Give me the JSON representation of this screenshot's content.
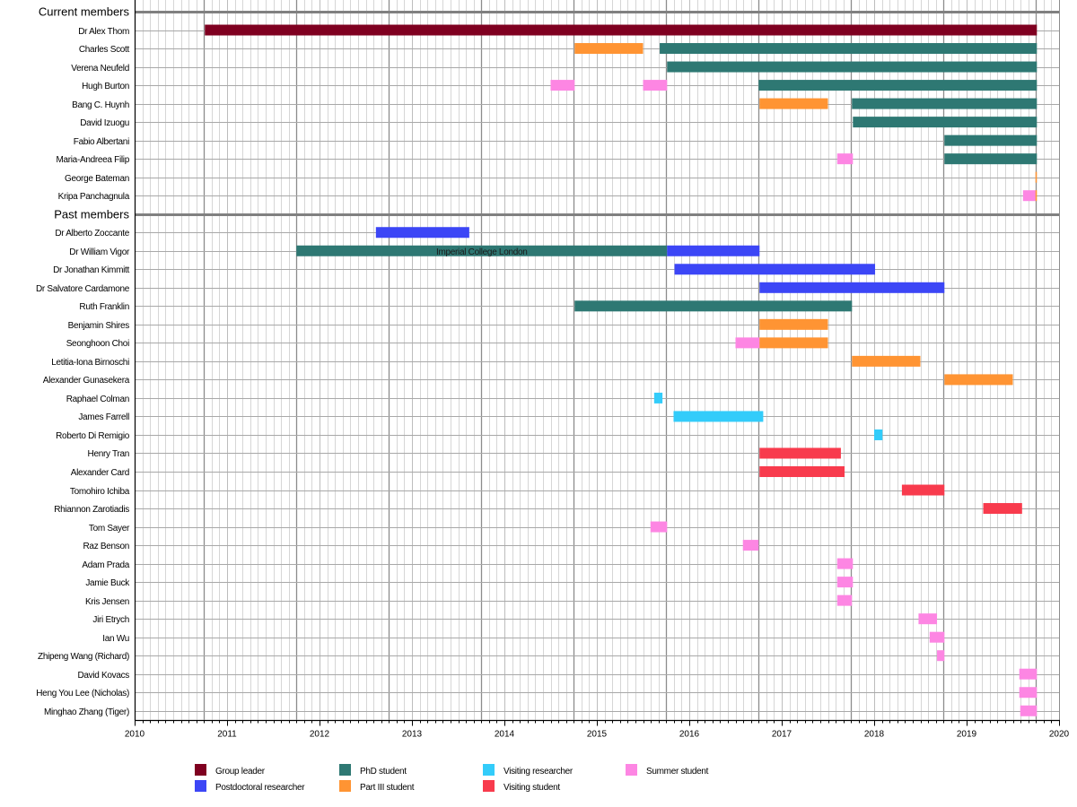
{
  "chart_data": {
    "type": "gantt",
    "title": "",
    "xlabel": "",
    "ylabel": "",
    "xlim": [
      2010,
      2020
    ],
    "x_ticks": [
      "2010",
      "2011",
      "2012",
      "2013",
      "2014",
      "2015",
      "2016",
      "2017",
      "2018",
      "2019",
      "2020"
    ],
    "grid": true,
    "legend_position": "bottom",
    "categories": {
      "group_leader": {
        "label": "Group leader",
        "color": "#7f0020"
      },
      "postdoc": {
        "label": "Postdoctoral researcher",
        "color": "#3c46f6"
      },
      "phd": {
        "label": "PhD student",
        "color": "#2e7873"
      },
      "part3": {
        "label": "Part III student",
        "color": "#ff9433"
      },
      "visiting_researcher": {
        "label": "Visiting researcher",
        "color": "#33ccfa"
      },
      "visiting_student": {
        "label": "Visiting student",
        "color": "#f83b4d"
      },
      "summer": {
        "label": "Summer student",
        "color": "#fd86e3"
      }
    },
    "legend_order": [
      "group_leader",
      "postdoc",
      "phd",
      "part3",
      "visiting_researcher",
      "visiting_student",
      "summer"
    ],
    "sections": [
      {
        "title": "Current members",
        "members": [
          {
            "name": "Dr Alex Thom",
            "spans": [
              {
                "start": 2010.76,
                "end": 2019.76,
                "role": "group_leader"
              }
            ]
          },
          {
            "name": "Charles Scott",
            "spans": [
              {
                "start": 2014.76,
                "end": 2015.5,
                "role": "part3"
              },
              {
                "start": 2015.68,
                "end": 2019.76,
                "role": "phd"
              }
            ]
          },
          {
            "name": "Verena Neufeld",
            "spans": [
              {
                "start": 2015.76,
                "end": 2019.76,
                "role": "phd"
              }
            ]
          },
          {
            "name": "Hugh Burton",
            "spans": [
              {
                "start": 2014.5,
                "end": 2014.76,
                "role": "summer"
              },
              {
                "start": 2015.5,
                "end": 2015.76,
                "role": "summer"
              },
              {
                "start": 2016.75,
                "end": 2019.76,
                "role": "phd"
              }
            ]
          },
          {
            "name": "Bang C. Huynh",
            "spans": [
              {
                "start": 2016.76,
                "end": 2017.5,
                "role": "part3"
              },
              {
                "start": 2017.76,
                "end": 2019.76,
                "role": "phd"
              }
            ]
          },
          {
            "name": "David Izuogu",
            "spans": [
              {
                "start": 2017.77,
                "end": 2019.76,
                "role": "phd"
              }
            ]
          },
          {
            "name": "Fabio Albertani",
            "spans": [
              {
                "start": 2018.76,
                "end": 2019.76,
                "role": "phd"
              }
            ]
          },
          {
            "name": "Maria-Andreea Filip",
            "spans": [
              {
                "start": 2017.6,
                "end": 2017.77,
                "role": "summer"
              },
              {
                "start": 2018.76,
                "end": 2019.76,
                "role": "phd"
              }
            ]
          },
          {
            "name": "George Bateman",
            "spans": [
              {
                "start": 2019.745,
                "end": 2019.76,
                "role": "part3"
              }
            ]
          },
          {
            "name": "Kripa Panchagnula",
            "spans": [
              {
                "start": 2019.61,
                "end": 2019.745,
                "role": "summer"
              },
              {
                "start": 2019.745,
                "end": 2019.76,
                "role": "part3"
              }
            ]
          }
        ]
      },
      {
        "title": "Past members",
        "members": [
          {
            "name": "Dr Alberto Zoccante",
            "spans": [
              {
                "start": 2012.61,
                "end": 2013.62,
                "role": "postdoc"
              }
            ]
          },
          {
            "name": "Dr William Vigor",
            "spans": [
              {
                "start": 2011.75,
                "end": 2015.76,
                "role": "phd",
                "annotation": "Imperial College London"
              },
              {
                "start": 2015.76,
                "end": 2016.76,
                "role": "postdoc"
              }
            ]
          },
          {
            "name": "Dr Jonathan Kimmitt",
            "spans": [
              {
                "start": 2015.84,
                "end": 2018.01,
                "role": "postdoc"
              }
            ]
          },
          {
            "name": "Dr Salvatore Cardamone",
            "spans": [
              {
                "start": 2016.76,
                "end": 2018.76,
                "role": "postdoc"
              }
            ]
          },
          {
            "name": "Ruth Franklin",
            "spans": [
              {
                "start": 2014.76,
                "end": 2017.76,
                "role": "phd"
              }
            ]
          },
          {
            "name": "Benjamin Shires",
            "spans": [
              {
                "start": 2016.76,
                "end": 2017.5,
                "role": "part3"
              }
            ]
          },
          {
            "name": "Seonghoon Choi",
            "spans": [
              {
                "start": 2016.5,
                "end": 2016.76,
                "role": "summer"
              },
              {
                "start": 2016.76,
                "end": 2017.5,
                "role": "part3"
              }
            ]
          },
          {
            "name": "Letitia-Iona Birnoschi",
            "spans": [
              {
                "start": 2017.76,
                "end": 2018.5,
                "role": "part3"
              }
            ]
          },
          {
            "name": "Alexander Gunasekera",
            "spans": [
              {
                "start": 2018.76,
                "end": 2019.5,
                "role": "part3"
              }
            ]
          },
          {
            "name": "Raphael Colman",
            "spans": [
              {
                "start": 2015.62,
                "end": 2015.71,
                "role": "visiting_researcher"
              }
            ]
          },
          {
            "name": "James Farrell",
            "spans": [
              {
                "start": 2015.83,
                "end": 2016.8,
                "role": "visiting_researcher"
              }
            ]
          },
          {
            "name": "Roberto Di Remigio",
            "spans": [
              {
                "start": 2018.0,
                "end": 2018.09,
                "role": "visiting_researcher"
              }
            ]
          },
          {
            "name": "Henry Tran",
            "spans": [
              {
                "start": 2016.76,
                "end": 2017.64,
                "role": "visiting_student"
              }
            ]
          },
          {
            "name": "Alexander Card",
            "spans": [
              {
                "start": 2016.76,
                "end": 2017.68,
                "role": "visiting_student"
              }
            ]
          },
          {
            "name": "Tomohiro Ichiba",
            "spans": [
              {
                "start": 2018.3,
                "end": 2018.76,
                "role": "visiting_student"
              }
            ]
          },
          {
            "name": "Rhiannon Zarotiadis",
            "spans": [
              {
                "start": 2019.18,
                "end": 2019.6,
                "role": "visiting_student"
              }
            ]
          },
          {
            "name": "Tom Sayer",
            "spans": [
              {
                "start": 2015.58,
                "end": 2015.76,
                "role": "summer"
              }
            ]
          },
          {
            "name": "Raz Benson",
            "spans": [
              {
                "start": 2016.58,
                "end": 2016.75,
                "role": "summer"
              }
            ]
          },
          {
            "name": "Adam Prada",
            "spans": [
              {
                "start": 2017.6,
                "end": 2017.77,
                "role": "summer"
              }
            ]
          },
          {
            "name": "Jamie Buck",
            "spans": [
              {
                "start": 2017.6,
                "end": 2017.77,
                "role": "summer"
              }
            ]
          },
          {
            "name": "Kris Jensen",
            "spans": [
              {
                "start": 2017.6,
                "end": 2017.76,
                "role": "summer"
              }
            ]
          },
          {
            "name": "Jiri Etrych",
            "spans": [
              {
                "start": 2018.48,
                "end": 2018.68,
                "role": "summer"
              }
            ]
          },
          {
            "name": "Ian Wu",
            "spans": [
              {
                "start": 2018.6,
                "end": 2018.76,
                "role": "summer"
              }
            ]
          },
          {
            "name": "Zhipeng Wang (Richard)",
            "spans": [
              {
                "start": 2018.68,
                "end": 2018.76,
                "role": "summer"
              }
            ]
          },
          {
            "name": "David Kovacs",
            "spans": [
              {
                "start": 2019.57,
                "end": 2019.76,
                "role": "summer"
              }
            ]
          },
          {
            "name": "Heng You Lee (Nicholas)",
            "spans": [
              {
                "start": 2019.57,
                "end": 2019.76,
                "role": "summer"
              }
            ]
          },
          {
            "name": "Minghao Zhang (Tiger)",
            "spans": [
              {
                "start": 2019.58,
                "end": 2019.76,
                "role": "summer"
              }
            ]
          }
        ]
      }
    ]
  }
}
